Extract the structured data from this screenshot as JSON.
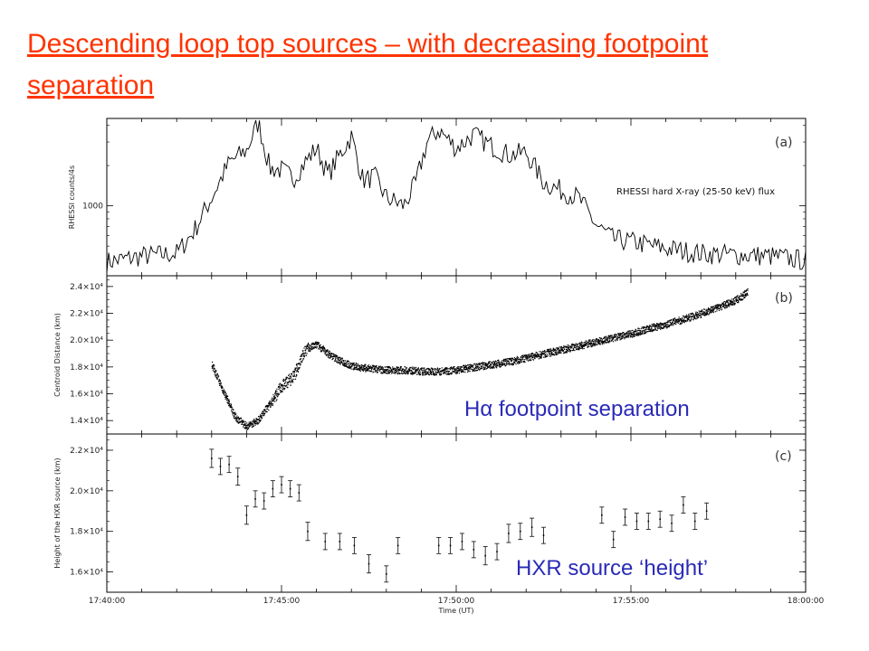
{
  "slide": {
    "title": "Descending loop top sources – with decreasing footpoint separation"
  },
  "colors": {
    "title": "#ff3300",
    "annotation": "#2a2ab8",
    "data": "#000000"
  },
  "chart_data": [
    {
      "panel": "(a)",
      "type": "line",
      "ylabel": "RHESSI counts/4s",
      "ytick_labels": [
        "1000"
      ],
      "annotation": "RHESSI hard X-ray (25-50 keV) flux",
      "log_scale_y": true,
      "xlim": [
        "17:40:00",
        "18:00:00"
      ],
      "ylim": [
        300,
        4500
      ],
      "series": [
        {
          "x": [
            "17:40:00",
            "17:41:00",
            "17:42:00",
            "17:42:30",
            "17:43:00",
            "17:43:30",
            "17:44:00",
            "17:44:20",
            "17:44:40",
            "17:45:00",
            "17:45:20",
            "17:45:40",
            "17:46:00",
            "17:46:20",
            "17:46:40",
            "17:47:00",
            "17:47:20",
            "17:47:40",
            "17:48:00",
            "17:48:30",
            "17:48:50",
            "17:49:10",
            "17:49:30",
            "17:50:00",
            "17:50:30",
            "17:51:00",
            "17:51:30",
            "17:52:00",
            "17:52:30",
            "17:53:00",
            "17:53:30",
            "17:54:00",
            "17:54:30",
            "17:55:00",
            "17:56:00",
            "17:57:00",
            "17:58:00",
            "17:59:00",
            "18:00:00"
          ],
          "y": [
            380,
            420,
            440,
            650,
            1150,
            2100,
            2600,
            4200,
            1900,
            1850,
            1600,
            2100,
            2700,
            1700,
            2400,
            3300,
            1550,
            1650,
            1150,
            1000,
            1450,
            3000,
            3700,
            2700,
            3400,
            2800,
            2400,
            2500,
            1500,
            1300,
            1150,
            720,
            560,
            540,
            480,
            440,
            430,
            420,
            390
          ]
        }
      ]
    },
    {
      "panel": "(b)",
      "type": "scatter",
      "ylabel": "Centroid Distance (km)",
      "ytick_labels": [
        "1.4×10⁴",
        "1.6×10⁴",
        "1.8×10⁴",
        "2.0×10⁴",
        "2.2×10⁴",
        "2.4×10⁴"
      ],
      "yticks": [
        14000,
        16000,
        18000,
        20000,
        22000,
        24000
      ],
      "ylim": [
        13000,
        24800
      ],
      "annotation": "Hα footpoint separation",
      "series": [
        {
          "x": [
            "17:43:00",
            "17:43:20",
            "17:43:40",
            "17:44:00",
            "17:44:20",
            "17:44:40",
            "17:45:00",
            "17:45:20",
            "17:45:40",
            "17:46:00",
            "17:46:20",
            "17:46:40",
            "17:47:00",
            "17:47:30",
            "17:48:00",
            "17:48:30",
            "17:49:00",
            "17:49:30",
            "17:50:00",
            "17:50:30",
            "17:51:00",
            "17:51:30",
            "17:52:00",
            "17:52:30",
            "17:53:00",
            "17:53:30",
            "17:54:00",
            "17:54:30",
            "17:55:00",
            "17:55:30",
            "17:56:00",
            "17:56:30",
            "17:57:00",
            "17:57:30",
            "17:58:00",
            "17:58:20"
          ],
          "y": [
            18200,
            16200,
            14300,
            13600,
            14100,
            15300,
            16600,
            17300,
            19300,
            19700,
            19000,
            18500,
            18100,
            17900,
            17800,
            17800,
            17700,
            17700,
            17800,
            18000,
            18200,
            18400,
            18700,
            19000,
            19300,
            19600,
            19900,
            20200,
            20500,
            20900,
            21200,
            21600,
            22000,
            22500,
            23000,
            23600
          ]
        }
      ]
    },
    {
      "panel": "(c)",
      "type": "scatter",
      "ylabel": "Height of the HXR source (km)",
      "ytick_labels": [
        "1.6×10⁴",
        "1.8×10⁴",
        "2.0×10⁴",
        "2.2×10⁴"
      ],
      "yticks": [
        16000,
        18000,
        20000,
        22000
      ],
      "ylim": [
        15000,
        22800
      ],
      "xlabel": "Time (UT)",
      "xtick_labels": [
        "17:40:00",
        "17:45:00",
        "17:50:00",
        "17:55:00",
        "18:00:00"
      ],
      "annotation": "HXR source ‘height’",
      "error_bars": true,
      "series": [
        {
          "x": [
            "17:43:00",
            "17:43:15",
            "17:43:30",
            "17:43:45",
            "17:44:00",
            "17:44:15",
            "17:44:30",
            "17:44:45",
            "17:45:00",
            "17:45:15",
            "17:45:30",
            "17:45:45",
            "17:46:15",
            "17:46:40",
            "17:47:05",
            "17:47:30",
            "17:48:00",
            "17:48:20",
            "17:49:30",
            "17:49:50",
            "17:50:10",
            "17:50:30",
            "17:50:50",
            "17:51:10",
            "17:51:30",
            "17:51:50",
            "17:52:10",
            "17:52:30",
            "17:54:10",
            "17:54:30",
            "17:54:50",
            "17:55:10",
            "17:55:30",
            "17:55:50",
            "17:56:10",
            "17:56:30",
            "17:56:50",
            "17:57:10"
          ],
          "y": [
            21600,
            21200,
            21300,
            20700,
            18800,
            19600,
            19500,
            20100,
            20300,
            20100,
            19900,
            18000,
            17500,
            17500,
            17300,
            16400,
            15900,
            17300,
            17300,
            17300,
            17500,
            17100,
            16800,
            17000,
            17900,
            18000,
            18200,
            17800,
            18800,
            17600,
            18700,
            18500,
            18500,
            18600,
            18400,
            19300,
            18500,
            19000
          ],
          "err": [
            450,
            400,
            400,
            420,
            450,
            400,
            400,
            400,
            400,
            400,
            400,
            450,
            400,
            400,
            400,
            450,
            400,
            400,
            400,
            400,
            400,
            400,
            450,
            400,
            450,
            400,
            450,
            400,
            400,
            400,
            400,
            400,
            400,
            400,
            400,
            400,
            400,
            400
          ]
        }
      ]
    }
  ]
}
